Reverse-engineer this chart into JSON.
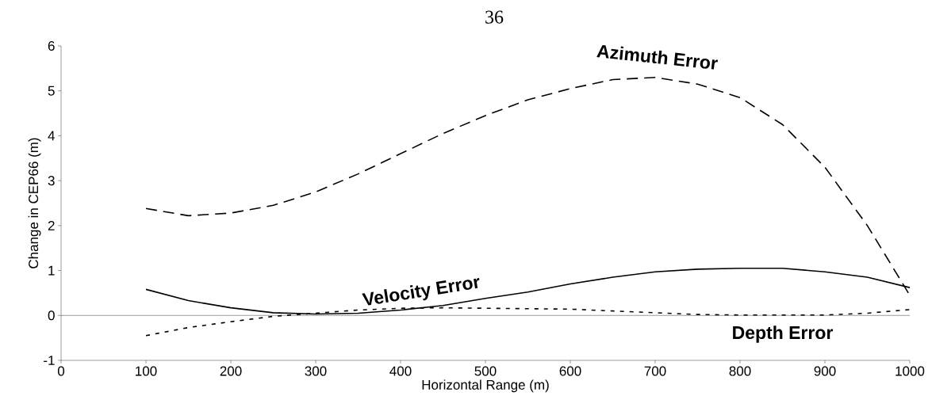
{
  "chart_data": {
    "type": "line",
    "xlabel": "Horizontal Range   (m)",
    "ylabel": "Change in CEP66   (m)",
    "annotations": [
      "36"
    ],
    "x": [
      100,
      150,
      200,
      250,
      300,
      350,
      400,
      450,
      500,
      550,
      600,
      650,
      700,
      750,
      800,
      850,
      900,
      950,
      1000
    ],
    "xlim": [
      0,
      1000
    ],
    "xticks": [
      0,
      100,
      200,
      300,
      400,
      500,
      600,
      700,
      800,
      900,
      1000
    ],
    "ylim": [
      -1,
      6
    ],
    "yticks": [
      -1,
      0,
      1,
      2,
      3,
      4,
      5,
      6
    ],
    "grid": false,
    "marker": "none",
    "ref_lines": [
      {
        "axis": "y",
        "value": 0,
        "color": "#000000",
        "line_style": "solid"
      }
    ],
    "series": [
      {
        "name": "Azimuth Error",
        "color": "#000000",
        "line_style": "dashed",
        "values": [
          2.38,
          2.22,
          2.28,
          2.45,
          2.75,
          3.15,
          3.6,
          4.05,
          4.45,
          4.8,
          5.05,
          5.25,
          5.3,
          5.15,
          4.85,
          4.25,
          3.3,
          2.0,
          0.45
        ]
      },
      {
        "name": "Velocity Error",
        "color": "#000000",
        "line_style": "solid",
        "values": [
          0.58,
          0.33,
          0.17,
          0.06,
          0.03,
          0.05,
          0.12,
          0.22,
          0.38,
          0.52,
          0.7,
          0.85,
          0.97,
          1.03,
          1.05,
          1.05,
          0.97,
          0.85,
          0.62
        ]
      },
      {
        "name": "Depth Error",
        "color": "#000000",
        "line_style": "dotted",
        "values": [
          -0.45,
          -0.27,
          -0.14,
          -0.02,
          0.05,
          0.12,
          0.16,
          0.17,
          0.16,
          0.15,
          0.14,
          0.1,
          0.06,
          0.02,
          0.01,
          0.01,
          0.01,
          0.05,
          0.13
        ]
      }
    ]
  }
}
